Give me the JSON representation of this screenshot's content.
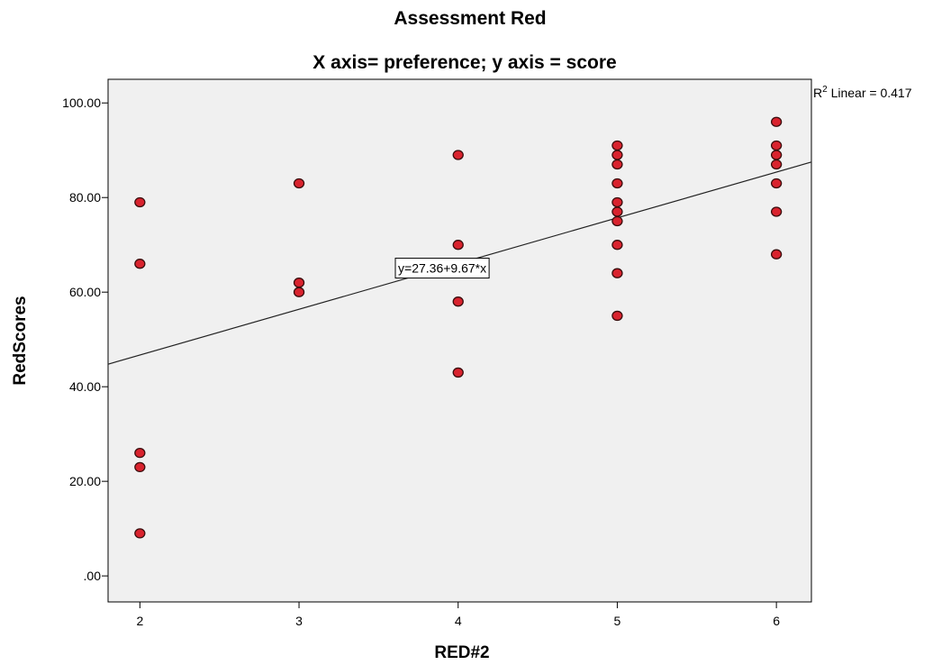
{
  "chart_data": {
    "type": "scatter",
    "title": "Assessment Red",
    "subtitle": "X axis= preference; y axis = score",
    "xlabel": "RED#2",
    "ylabel": "RedScores",
    "xlim": [
      1.8,
      6.22
    ],
    "ylim": [
      -5.5,
      105
    ],
    "x_ticks": [
      2,
      3,
      4,
      5,
      6
    ],
    "x_tick_labels": [
      "2",
      "3",
      "4",
      "5",
      "6"
    ],
    "y_ticks": [
      0,
      20,
      40,
      60,
      80,
      100
    ],
    "y_tick_labels": [
      ".00",
      "20.00",
      "40.00",
      "60.00",
      "80.00",
      "100.00"
    ],
    "grid": false,
    "background_color": "#f0f0f0",
    "marker_color": "#d9232e",
    "marker_edge_color": "#3a0d0d",
    "line_color": "#222222",
    "points": [
      {
        "x": 2,
        "y": 79
      },
      {
        "x": 2,
        "y": 66
      },
      {
        "x": 2,
        "y": 26
      },
      {
        "x": 2,
        "y": 23
      },
      {
        "x": 2,
        "y": 9
      },
      {
        "x": 3,
        "y": 83
      },
      {
        "x": 3,
        "y": 62
      },
      {
        "x": 3,
        "y": 60
      },
      {
        "x": 4,
        "y": 89
      },
      {
        "x": 4,
        "y": 70
      },
      {
        "x": 4,
        "y": 58
      },
      {
        "x": 4,
        "y": 43
      },
      {
        "x": 5,
        "y": 91
      },
      {
        "x": 5,
        "y": 89
      },
      {
        "x": 5,
        "y": 87
      },
      {
        "x": 5,
        "y": 83
      },
      {
        "x": 5,
        "y": 79
      },
      {
        "x": 5,
        "y": 77
      },
      {
        "x": 5,
        "y": 75
      },
      {
        "x": 5,
        "y": 70
      },
      {
        "x": 5,
        "y": 64
      },
      {
        "x": 5,
        "y": 55
      },
      {
        "x": 6,
        "y": 96
      },
      {
        "x": 6,
        "y": 91
      },
      {
        "x": 6,
        "y": 89
      },
      {
        "x": 6,
        "y": 87
      },
      {
        "x": 6,
        "y": 83
      },
      {
        "x": 6,
        "y": 77
      },
      {
        "x": 6,
        "y": 68
      }
    ],
    "fit_line": {
      "intercept": 27.36,
      "slope": 9.67,
      "equation_label": "y=27.36+9.67*x",
      "label_position_x": 3.9
    },
    "r2_label": {
      "prefix": "R",
      "superscript": "2",
      "text": " Linear = 0.417"
    }
  }
}
